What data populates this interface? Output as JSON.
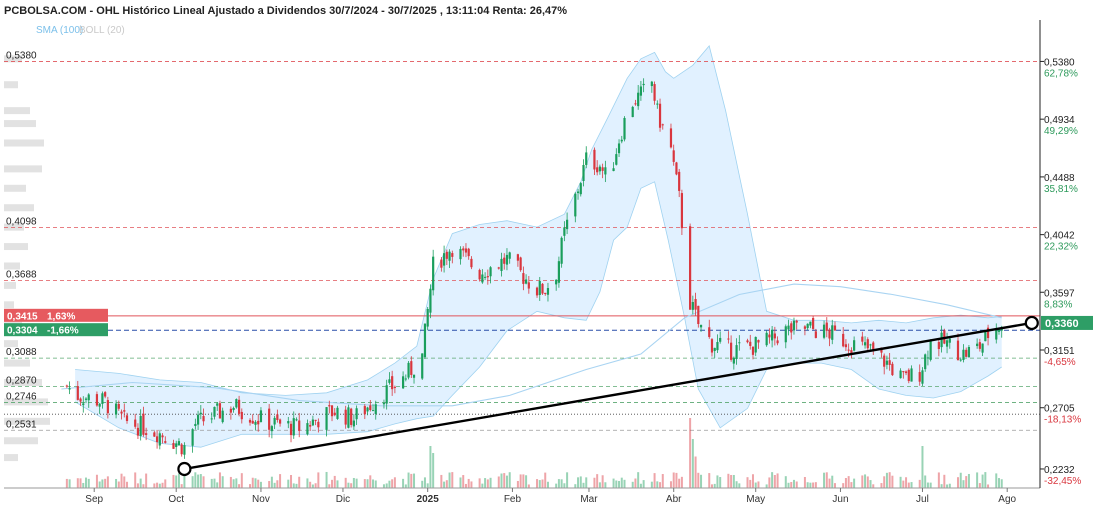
{
  "header": {
    "title": "PCBOLSA.COM - OHL Histórico Lineal Ajustado a Dividendos 30/7/2024 - 30/7/2025 , 13:11:04 Renta: 26,47%",
    "indicators": {
      "sma": "SMA (100)",
      "boll": "BOLL (20)"
    }
  },
  "colors": {
    "up": "#1a9e5c",
    "down": "#d9363e",
    "band_fill": "#dcefff",
    "band_line": "#9fd2f0",
    "sma_line": "#a9d4f2",
    "trend_line": "#000000",
    "axis_pct_up": "#2d9a5b",
    "axis_pct_down": "#d9363e"
  },
  "chart_data": {
    "type": "candlestick",
    "x_labels": [
      "Sep",
      "Oct",
      "Nov",
      "Dic",
      "2025",
      "Feb",
      "Mar",
      "Abr",
      "May",
      "Jun",
      "Jul",
      "Ago"
    ],
    "x_label_dates": [
      "2024-09-01",
      "2024-10-01",
      "2024-11-01",
      "2024-12-01",
      "2025-01-01",
      "2025-02-01",
      "2025-03-01",
      "2025-04-01",
      "2025-05-01",
      "2025-06-01",
      "2025-07-01",
      "2025-08-01"
    ],
    "date_range": [
      "2024-07-30",
      "2025-07-30"
    ],
    "ylim": [
      0.2085,
      0.57
    ],
    "y_right_ticks": [
      {
        "price": "0,5380",
        "pct": "62,78%"
      },
      {
        "price": "0,4934",
        "pct": "49,29%"
      },
      {
        "price": "0,4488",
        "pct": "35,81%"
      },
      {
        "price": "0,4042",
        "pct": "22,32%"
      },
      {
        "price": "0,3597",
        "pct": "8,83%"
      },
      {
        "price": "0,3151",
        "pct": "-4,65%"
      },
      {
        "price": "0,2705",
        "pct": "-18,13%"
      },
      {
        "price": "0,2232",
        "pct": "-32,45%"
      }
    ],
    "left_levels": [
      "0,5380",
      "0,4098",
      "0,3688",
      "0,3088",
      "0,2870",
      "0,2746",
      "0,2531"
    ],
    "last_price": "0,3360",
    "price_boxes": [
      {
        "label": "0,3415",
        "pct": "1,63%"
      },
      {
        "label": "0,3304",
        "pct": "-1,66%"
      }
    ],
    "trendline": {
      "from": {
        "date": "2024-10-04",
        "value": 0.2232
      },
      "to": {
        "date": "2025-08-10",
        "value": 0.336
      }
    },
    "close_path": [
      [
        "2024-07-30",
        0.3
      ],
      [
        "2024-08-06",
        0.305
      ],
      [
        "2024-08-15",
        0.3
      ],
      [
        "2024-08-26",
        0.28
      ],
      [
        "2024-09-05",
        0.275
      ],
      [
        "2024-09-12",
        0.26
      ],
      [
        "2024-09-20",
        0.255
      ],
      [
        "2024-09-26",
        0.25
      ],
      [
        "2024-10-04",
        0.24
      ],
      [
        "2024-10-08",
        0.258
      ],
      [
        "2024-10-15",
        0.265
      ],
      [
        "2024-10-22",
        0.272
      ],
      [
        "2024-10-31",
        0.262
      ],
      [
        "2024-11-06",
        0.258
      ],
      [
        "2024-11-15",
        0.255
      ],
      [
        "2024-11-22",
        0.262
      ],
      [
        "2024-11-28",
        0.268
      ],
      [
        "2024-12-05",
        0.262
      ],
      [
        "2024-12-12",
        0.275
      ],
      [
        "2024-12-18",
        0.285
      ],
      [
        "2024-12-24",
        0.295
      ],
      [
        "2024-12-30",
        0.31
      ],
      [
        "2025-01-03",
        0.38
      ],
      [
        "2025-01-10",
        0.395
      ],
      [
        "2025-01-20",
        0.375
      ],
      [
        "2025-01-30",
        0.385
      ],
      [
        "2025-02-05",
        0.372
      ],
      [
        "2025-02-10",
        0.362
      ],
      [
        "2025-02-13",
        0.362
      ],
      [
        "2025-02-17",
        0.375
      ],
      [
        "2025-02-20",
        0.405
      ],
      [
        "2025-02-25",
        0.44
      ],
      [
        "2025-02-28",
        0.462
      ],
      [
        "2025-03-05",
        0.458
      ],
      [
        "2025-03-08",
        0.445
      ],
      [
        "2025-03-12",
        0.478
      ],
      [
        "2025-03-16",
        0.505
      ],
      [
        "2025-03-20",
        0.512
      ],
      [
        "2025-03-24",
        0.522
      ],
      [
        "2025-03-26",
        0.498
      ],
      [
        "2025-03-31",
        0.47
      ],
      [
        "2025-04-03",
        0.432
      ],
      [
        "2025-04-05",
        0.395
      ],
      [
        "2025-04-07",
        0.352
      ],
      [
        "2025-04-10",
        0.335
      ],
      [
        "2025-04-15",
        0.32
      ],
      [
        "2025-04-22",
        0.315
      ],
      [
        "2025-04-30",
        0.318
      ],
      [
        "2025-05-06",
        0.322
      ],
      [
        "2025-05-12",
        0.33
      ],
      [
        "2025-05-20",
        0.332
      ],
      [
        "2025-05-28",
        0.328
      ],
      [
        "2025-06-05",
        0.32
      ],
      [
        "2025-06-12",
        0.315
      ],
      [
        "2025-06-18",
        0.305
      ],
      [
        "2025-06-24",
        0.292
      ],
      [
        "2025-06-30",
        0.298
      ],
      [
        "2025-07-04",
        0.322
      ],
      [
        "2025-07-10",
        0.32
      ],
      [
        "2025-07-16",
        0.312
      ],
      [
        "2025-07-22",
        0.318
      ],
      [
        "2025-07-26",
        0.33
      ],
      [
        "2025-07-30",
        0.336
      ]
    ],
    "boll_upper": [
      [
        "2024-08-25",
        0.3
      ],
      [
        "2024-09-10",
        0.297
      ],
      [
        "2024-09-25",
        0.292
      ],
      [
        "2024-10-10",
        0.29
      ],
      [
        "2024-10-25",
        0.282
      ],
      [
        "2024-11-10",
        0.28
      ],
      [
        "2024-11-25",
        0.282
      ],
      [
        "2024-12-10",
        0.292
      ],
      [
        "2024-12-20",
        0.305
      ],
      [
        "2024-12-28",
        0.318
      ],
      [
        "2025-01-03",
        0.37
      ],
      [
        "2025-01-10",
        0.405
      ],
      [
        "2025-01-20",
        0.412
      ],
      [
        "2025-01-30",
        0.415
      ],
      [
        "2025-02-10",
        0.41
      ],
      [
        "2025-02-20",
        0.42
      ],
      [
        "2025-02-26",
        0.445
      ],
      [
        "2025-03-02",
        0.47
      ],
      [
        "2025-03-08",
        0.495
      ],
      [
        "2025-03-15",
        0.525
      ],
      [
        "2025-03-20",
        0.54
      ],
      [
        "2025-03-25",
        0.545
      ],
      [
        "2025-03-29",
        0.53
      ],
      [
        "2025-04-01",
        0.525
      ],
      [
        "2025-04-08",
        0.535
      ],
      [
        "2025-04-14",
        0.55
      ],
      [
        "2025-04-20",
        0.5
      ],
      [
        "2025-04-28",
        0.42
      ],
      [
        "2025-05-05",
        0.345
      ],
      [
        "2025-05-15",
        0.338
      ],
      [
        "2025-05-25",
        0.338
      ],
      [
        "2025-06-05",
        0.336
      ],
      [
        "2025-06-15",
        0.338
      ],
      [
        "2025-06-25",
        0.336
      ],
      [
        "2025-07-05",
        0.34
      ],
      [
        "2025-07-15",
        0.342
      ],
      [
        "2025-07-25",
        0.34
      ],
      [
        "2025-07-30",
        0.341
      ]
    ],
    "boll_lower": [
      [
        "2024-08-25",
        0.275
      ],
      [
        "2024-09-10",
        0.255
      ],
      [
        "2024-09-25",
        0.243
      ],
      [
        "2024-10-10",
        0.24
      ],
      [
        "2024-10-25",
        0.25
      ],
      [
        "2024-11-10",
        0.25
      ],
      [
        "2024-11-25",
        0.25
      ],
      [
        "2024-12-10",
        0.252
      ],
      [
        "2024-12-20",
        0.258
      ],
      [
        "2024-12-28",
        0.262
      ],
      [
        "2025-01-03",
        0.264
      ],
      [
        "2025-01-10",
        0.28
      ],
      [
        "2025-01-20",
        0.302
      ],
      [
        "2025-01-30",
        0.33
      ],
      [
        "2025-02-10",
        0.345
      ],
      [
        "2025-02-20",
        0.34
      ],
      [
        "2025-02-28",
        0.338
      ],
      [
        "2025-03-05",
        0.36
      ],
      [
        "2025-03-10",
        0.4
      ],
      [
        "2025-03-15",
        0.41
      ],
      [
        "2025-03-20",
        0.44
      ],
      [
        "2025-03-25",
        0.445
      ],
      [
        "2025-03-30",
        0.4
      ],
      [
        "2025-04-05",
        0.34
      ],
      [
        "2025-04-10",
        0.285
      ],
      [
        "2025-04-18",
        0.255
      ],
      [
        "2025-04-28",
        0.27
      ],
      [
        "2025-05-05",
        0.3
      ],
      [
        "2025-05-15",
        0.305
      ],
      [
        "2025-05-25",
        0.305
      ],
      [
        "2025-06-05",
        0.3
      ],
      [
        "2025-06-15",
        0.285
      ],
      [
        "2025-06-25",
        0.28
      ],
      [
        "2025-07-05",
        0.278
      ],
      [
        "2025-07-15",
        0.283
      ],
      [
        "2025-07-25",
        0.295
      ],
      [
        "2025-07-30",
        0.302
      ]
    ],
    "sma_line": [
      [
        "2024-08-20",
        0.285
      ],
      [
        "2024-09-15",
        0.29
      ],
      [
        "2024-10-15",
        0.286
      ],
      [
        "2024-11-15",
        0.276
      ],
      [
        "2024-12-15",
        0.272
      ],
      [
        "2025-01-10",
        0.272
      ],
      [
        "2025-01-31",
        0.28
      ],
      [
        "2025-02-28",
        0.3
      ],
      [
        "2025-03-20",
        0.312
      ],
      [
        "2025-04-05",
        0.34
      ],
      [
        "2025-04-25",
        0.358
      ],
      [
        "2025-05-15",
        0.366
      ],
      [
        "2025-06-01",
        0.364
      ],
      [
        "2025-06-20",
        0.358
      ],
      [
        "2025-07-10",
        0.35
      ],
      [
        "2025-07-30",
        0.34
      ]
    ],
    "volume_spikes": [
      {
        "date": "2025-01-02",
        "level": 0.6
      },
      {
        "date": "2025-01-03",
        "level": 0.5
      },
      {
        "date": "2025-04-07",
        "level": 1.0
      },
      {
        "date": "2025-04-08",
        "level": 0.7
      },
      {
        "date": "2025-04-09",
        "level": 0.45
      },
      {
        "date": "2025-07-01",
        "level": 0.6
      }
    ]
  }
}
